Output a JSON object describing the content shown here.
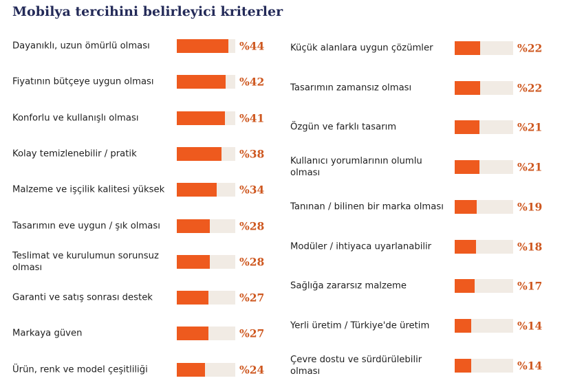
{
  "title": "Mobilya tercihini belirleyici kriterler",
  "chart_data": {
    "type": "bar",
    "orientation": "horizontal",
    "title": "Mobilya tercihini belirleyici kriterler",
    "xlim": [
      0,
      50
    ],
    "value_prefix": "%",
    "colors": {
      "bar": "#ee5a1e",
      "track": "#f1ebe4",
      "value_text": "#ce5820",
      "title": "#232a58"
    },
    "panels": [
      {
        "categories": [
          "Dayanıklı, uzun ömürlü olması",
          "Fiyatının bütçeye uygun olması",
          "Konforlu ve kullanışlı olması",
          "Kolay temizlenebilir / pratik",
          "Malzeme ve işçilik kalitesi yüksek",
          "Tasarımın eve uygun / şık olması",
          "Teslimat ve kurulumun sorunsuz olması",
          "Garanti ve satış sonrası destek",
          "Markaya güven",
          "Ürün, renk ve model çeşitliliği"
        ],
        "values": [
          44,
          42,
          41,
          38,
          34,
          28,
          28,
          27,
          27,
          24
        ],
        "value_labels": [
          "%44",
          "%42",
          "%41",
          "%38",
          "%34",
          "%28",
          "%28",
          "%27",
          "%27",
          "%24"
        ]
      },
      {
        "categories": [
          "Küçük alanlara uygun çözümler",
          "Tasarımın zamansız olması",
          "Özgün ve farklı tasarım",
          "Kullanıcı yorumlarının olumlu olması",
          "Tanınan / bilinen bir marka olması",
          "Modüler / ihtiyaca uyarlanabilir",
          "Sağlığa zararsız malzeme",
          "Yerli üretim / Türkiye'de üretim",
          "Çevre dostu ve sürdürülebilir olması"
        ],
        "values": [
          22,
          22,
          21,
          21,
          19,
          18,
          17,
          14,
          14
        ],
        "value_labels": [
          "%22",
          "%22",
          "%21",
          "%21",
          "%19",
          "%18",
          "%17",
          "%14",
          "%14"
        ]
      }
    ]
  }
}
